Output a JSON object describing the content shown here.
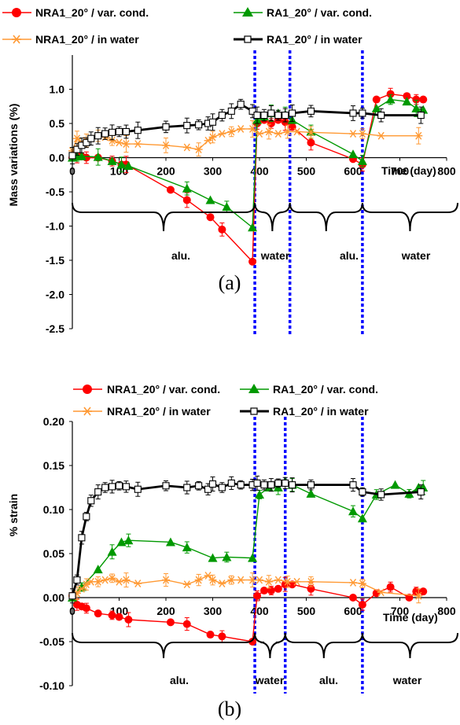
{
  "chart_data": [
    {
      "type": "line",
      "panel_label": "(a)",
      "ylabel": "Mass variations (%)",
      "xlabel": "Time (day)",
      "xlim": [
        0,
        800
      ],
      "ylim": [
        -2.5,
        1.5
      ],
      "xticks": [
        0,
        100,
        200,
        300,
        400,
        500,
        600,
        700,
        800
      ],
      "yticks": [
        1.0,
        0.5,
        0.0,
        -0.5,
        -1.0,
        -1.5,
        -2.0,
        -2.5
      ],
      "ytick_labels": [
        "1.0",
        "0.5",
        "0.0",
        "-0.5",
        "-1.0",
        "-1.5",
        "-2.0",
        "-2.5"
      ],
      "grid": false,
      "legend_position": "top",
      "dividers_x": [
        390,
        465,
        620
      ],
      "phase_labels": [
        "alu.",
        "water",
        "alu.",
        "water"
      ],
      "series": [
        {
          "name": "NRA1_20° / var. cond.",
          "color": "#ff0000",
          "marker": "circle",
          "line_color": "#ff0000",
          "x": [
            0,
            10,
            20,
            30,
            55,
            85,
            105,
            115,
            210,
            245,
            295,
            320,
            385,
            395,
            410,
            425,
            440,
            455,
            470,
            510,
            600,
            620,
            650,
            680,
            715,
            735,
            750
          ],
          "y": [
            0.0,
            0.02,
            0.02,
            0.0,
            0.0,
            -0.05,
            -0.1,
            -0.1,
            -0.47,
            -0.62,
            -0.87,
            -1.05,
            -1.52,
            0.5,
            0.55,
            0.5,
            0.55,
            0.52,
            0.45,
            0.22,
            -0.02,
            -0.1,
            0.85,
            0.93,
            0.9,
            0.85,
            0.85
          ]
        },
        {
          "name": "RA1_20° / var. cond.",
          "color": "#009900",
          "marker": "triangle",
          "line_color": "#009900",
          "x": [
            0,
            10,
            20,
            55,
            85,
            105,
            120,
            245,
            295,
            330,
            385,
            395,
            410,
            425,
            440,
            455,
            470,
            510,
            600,
            620,
            650,
            680,
            715,
            735,
            750
          ],
          "y": [
            0.0,
            0.02,
            0.02,
            0.01,
            -0.05,
            -0.1,
            -0.12,
            -0.45,
            -0.62,
            -0.72,
            -1.02,
            0.55,
            0.6,
            0.65,
            0.65,
            0.63,
            0.55,
            0.38,
            0.05,
            -0.05,
            0.72,
            0.85,
            0.82,
            0.72,
            0.7
          ]
        },
        {
          "name": "NRA1_20° / in water",
          "color": "#ff9933",
          "marker": "asterisk",
          "line_color": "#ff9933",
          "x": [
            0,
            10,
            20,
            30,
            40,
            55,
            70,
            85,
            100,
            115,
            140,
            200,
            245,
            270,
            290,
            300,
            320,
            340,
            360,
            385,
            400,
            420,
            440,
            460,
            480,
            510,
            600,
            620,
            660,
            740
          ],
          "y": [
            0.1,
            0.28,
            0.22,
            0.25,
            0.28,
            0.32,
            0.3,
            0.25,
            0.22,
            0.2,
            0.2,
            0.18,
            0.15,
            0.12,
            0.25,
            0.3,
            0.35,
            0.38,
            0.42,
            0.42,
            0.35,
            0.38,
            0.35,
            0.38,
            0.38,
            0.37,
            0.35,
            0.35,
            0.32,
            0.32
          ]
        },
        {
          "name": "RA1_20° / in water",
          "color": "#000000",
          "marker": "square",
          "line_color": "#000000",
          "x": [
            0,
            10,
            20,
            30,
            40,
            55,
            70,
            85,
            100,
            115,
            140,
            200,
            245,
            270,
            290,
            300,
            320,
            340,
            360,
            385,
            395,
            410,
            425,
            440,
            455,
            470,
            510,
            600,
            620,
            660,
            745
          ],
          "y": [
            0.03,
            0.12,
            0.18,
            0.22,
            0.28,
            0.32,
            0.35,
            0.37,
            0.38,
            0.38,
            0.4,
            0.45,
            0.47,
            0.48,
            0.5,
            0.52,
            0.62,
            0.68,
            0.78,
            0.68,
            0.62,
            0.62,
            0.65,
            0.62,
            0.62,
            0.65,
            0.68,
            0.65,
            0.65,
            0.62,
            0.62
          ]
        }
      ]
    },
    {
      "type": "line",
      "panel_label": "(b)",
      "ylabel": "% strain",
      "xlabel": "Time (day)",
      "xlim": [
        0,
        800
      ],
      "ylim": [
        -0.1,
        0.2
      ],
      "xticks": [
        0,
        100,
        200,
        300,
        400,
        500,
        600,
        700,
        800
      ],
      "yticks": [
        0.2,
        0.15,
        0.1,
        0.05,
        0.0,
        -0.05,
        -0.1
      ],
      "ytick_labels": [
        "0.20",
        "0.15",
        "0.10",
        "0.05",
        "0.00",
        "-0.05",
        "-0.10"
      ],
      "grid": false,
      "legend_position": "top",
      "dividers_x": [
        390,
        455,
        620
      ],
      "phase_labels": [
        "alu.",
        "water",
        "alu.",
        "water"
      ],
      "series": [
        {
          "name": "NRA1_20° / var. cond.",
          "color": "#ff0000",
          "marker": "circle",
          "line_color": "#ff0000",
          "x": [
            0,
            10,
            20,
            30,
            55,
            85,
            100,
            120,
            210,
            245,
            295,
            320,
            385,
            395,
            410,
            425,
            440,
            455,
            470,
            510,
            600,
            620,
            650,
            680,
            720,
            735,
            750
          ],
          "y": [
            0.002,
            -0.008,
            -0.01,
            -0.012,
            -0.018,
            -0.02,
            -0.022,
            -0.025,
            -0.028,
            -0.03,
            -0.042,
            -0.044,
            -0.05,
            0.002,
            0.008,
            0.008,
            0.01,
            0.015,
            0.015,
            0.01,
            0.0,
            -0.008,
            0.005,
            0.012,
            0.0,
            0.007,
            0.007
          ]
        },
        {
          "name": "RA1_20° / var. cond.",
          "color": "#009900",
          "marker": "triangle",
          "line_color": "#009900",
          "x": [
            0,
            20,
            55,
            85,
            105,
            120,
            210,
            245,
            300,
            330,
            385,
            400,
            420,
            440,
            455,
            470,
            510,
            600,
            620,
            650,
            690,
            720,
            740,
            750
          ],
          "y": [
            0.0,
            0.012,
            0.032,
            0.052,
            0.063,
            0.065,
            0.063,
            0.057,
            0.045,
            0.046,
            0.045,
            0.117,
            0.125,
            0.125,
            0.132,
            0.128,
            0.118,
            0.098,
            0.09,
            0.117,
            0.128,
            0.118,
            0.125,
            0.125
          ]
        },
        {
          "name": "NRA1_20° / in water",
          "color": "#ff9933",
          "marker": "asterisk",
          "line_color": "#ff9933",
          "x": [
            0,
            10,
            20,
            30,
            40,
            55,
            70,
            85,
            100,
            115,
            140,
            200,
            245,
            270,
            290,
            300,
            320,
            340,
            360,
            385,
            400,
            420,
            440,
            460,
            480,
            510,
            600,
            620,
            660,
            740
          ],
          "y": [
            0.002,
            0.005,
            0.01,
            0.015,
            0.018,
            0.018,
            0.02,
            0.022,
            0.018,
            0.02,
            0.016,
            0.02,
            0.015,
            0.02,
            0.025,
            0.02,
            0.016,
            0.02,
            0.02,
            0.02,
            0.02,
            0.018,
            0.02,
            0.018,
            0.018,
            0.018,
            0.017,
            0.016,
            0.006,
            0.002
          ]
        },
        {
          "name": "RA1_20° / in water",
          "color": "#000000",
          "marker": "square",
          "line_color": "#000000",
          "x": [
            0,
            10,
            20,
            30,
            40,
            55,
            70,
            85,
            100,
            115,
            140,
            200,
            245,
            270,
            290,
            300,
            320,
            340,
            360,
            385,
            395,
            410,
            425,
            440,
            455,
            470,
            510,
            600,
            620,
            660,
            745
          ],
          "y": [
            0.002,
            0.02,
            0.068,
            0.092,
            0.11,
            0.12,
            0.125,
            0.126,
            0.127,
            0.126,
            0.123,
            0.127,
            0.125,
            0.127,
            0.123,
            0.129,
            0.125,
            0.13,
            0.128,
            0.128,
            0.13,
            0.128,
            0.128,
            0.13,
            0.13,
            0.128,
            0.128,
            0.128,
            0.12,
            0.117,
            0.12
          ]
        }
      ]
    }
  ]
}
